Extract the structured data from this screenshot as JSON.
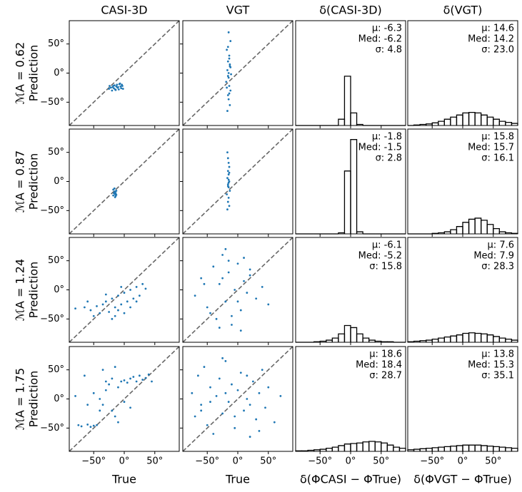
{
  "chart_data": [
    {
      "type": "scatter",
      "title": "CASI-3D",
      "ylabel": [
        "ℳA = 0.62",
        "Prediction"
      ],
      "color": "#1f77b4",
      "xlim": [
        -90,
        90
      ],
      "ylim": [
        -90,
        90
      ],
      "yticks": [
        {
          "value": -50,
          "label": "−50°"
        },
        {
          "value": 0,
          "label": "0°"
        },
        {
          "value": 50,
          "label": "50°"
        }
      ],
      "x": [
        -22,
        -18,
        -15,
        -12,
        -10,
        -8,
        -6,
        -5,
        -20,
        -25,
        -16,
        -11,
        -7,
        -3,
        -2,
        -14,
        -19,
        -9,
        -13,
        -17,
        -4,
        -24
      ],
      "y": [
        -25,
        -22,
        -28,
        -20,
        -24,
        -19,
        -23,
        -26,
        -30,
        -27,
        -21,
        -25,
        -18,
        -22,
        -27,
        -29,
        -24,
        -28,
        -23,
        -26,
        -20,
        -22
      ]
    },
    {
      "type": "scatter",
      "title": "VGT",
      "color": "#1f77b4",
      "xlim": [
        -90,
        90
      ],
      "ylim": [
        -90,
        90
      ],
      "x": [
        -15,
        -12,
        -18,
        -14,
        -16,
        -13,
        -17,
        -11,
        -15,
        -19,
        -14,
        -12,
        -16,
        -15,
        -13,
        -17,
        -14,
        -16,
        -12,
        -15,
        -18,
        -13,
        -14,
        -16
      ],
      "y": [
        70,
        55,
        40,
        30,
        20,
        12,
        5,
        -2,
        -8,
        -15,
        -22,
        -30,
        -38,
        -45,
        -55,
        -65,
        25,
        -5,
        10,
        0,
        -25,
        15,
        -35,
        45
      ]
    },
    {
      "type": "histogram",
      "title": "δ(CASI-3D)",
      "annotations": [
        "μ: -6.3",
        "Med: -6.2",
        "σ: 4.8"
      ],
      "color": "#000000",
      "xlim": [
        -90,
        90
      ],
      "ylim": [
        0,
        100
      ],
      "bins": [
        -90,
        -80,
        -70,
        -60,
        -50,
        -40,
        -30,
        -20,
        -10,
        0,
        10,
        20,
        30,
        40,
        50,
        60,
        70,
        80,
        90
      ],
      "values": [
        0,
        0,
        0,
        0,
        0,
        0,
        0,
        6,
        47,
        12,
        1,
        0,
        0,
        0,
        0,
        0,
        0,
        0
      ]
    },
    {
      "type": "histogram",
      "title": "δ(VGT)",
      "annotations": [
        "μ: 14.6",
        "Med: 14.2",
        "σ: 23.0"
      ],
      "color": "#000000",
      "xlim": [
        -90,
        90
      ],
      "ylim": [
        0,
        100
      ],
      "bins": [
        -90,
        -80,
        -70,
        -60,
        -50,
        -40,
        -30,
        -20,
        -10,
        0,
        10,
        20,
        30,
        40,
        50,
        60,
        70,
        80,
        90
      ],
      "values": [
        0,
        0.5,
        1,
        1.5,
        2.5,
        4,
        6,
        8,
        10,
        12,
        12.5,
        12,
        10,
        8,
        6,
        4,
        3,
        2
      ]
    },
    {
      "type": "scatter",
      "ylabel": [
        "ℳA = 0.87",
        "Prediction"
      ],
      "color": "#1f77b4",
      "xlim": [
        -90,
        90
      ],
      "ylim": [
        -90,
        90
      ],
      "yticks": [
        {
          "value": -50,
          "label": "−50°"
        },
        {
          "value": 0,
          "label": "0°"
        },
        {
          "value": 50,
          "label": "50°"
        }
      ],
      "x": [
        -18,
        -16,
        -15,
        -14,
        -17,
        -13,
        -15,
        -16,
        -14,
        -18,
        -15,
        -13
      ],
      "y": [
        -14,
        -18,
        -22,
        -25,
        -20,
        -16,
        -27,
        -12,
        -20,
        -24,
        -17,
        -23
      ]
    },
    {
      "type": "scatter",
      "color": "#1f77b4",
      "xlim": [
        -90,
        90
      ],
      "ylim": [
        -90,
        90
      ],
      "x": [
        -17,
        -16,
        -15,
        -14,
        -16,
        -15,
        -17,
        -14,
        -16,
        -15,
        -13,
        -18,
        -15,
        -16,
        -14,
        -17,
        -15,
        -16,
        -14,
        -15
      ],
      "y": [
        50,
        40,
        32,
        25,
        18,
        12,
        6,
        0,
        -5,
        -10,
        -16,
        -22,
        -28,
        -35,
        -42,
        -48,
        3,
        -8,
        15,
        -2
      ]
    },
    {
      "type": "histogram",
      "annotations": [
        "μ: -1.8",
        "Med: -1.5",
        "σ: 2.8"
      ],
      "color": "#000000",
      "xlim": [
        -90,
        90
      ],
      "ylim": [
        0,
        100
      ],
      "bins": [
        -90,
        -80,
        -70,
        -60,
        -50,
        -40,
        -30,
        -20,
        -10,
        0,
        10,
        20,
        30,
        40,
        50,
        60,
        70,
        80,
        90
      ],
      "values": [
        0,
        0,
        0,
        0,
        0,
        0,
        0,
        1,
        60,
        90,
        2,
        0,
        0,
        0,
        0,
        0,
        0,
        0
      ]
    },
    {
      "type": "histogram",
      "annotations": [
        "μ: 15.8",
        "Med: 15.7",
        "σ: 16.1"
      ],
      "color": "#000000",
      "xlim": [
        -90,
        90
      ],
      "ylim": [
        0,
        100
      ],
      "bins": [
        -90,
        -80,
        -70,
        -60,
        -50,
        -40,
        -30,
        -20,
        -10,
        0,
        10,
        20,
        30,
        40,
        50,
        60,
        70,
        80,
        90
      ],
      "values": [
        0,
        0,
        0,
        0,
        0.5,
        1,
        2,
        4,
        7,
        11,
        14,
        15,
        13,
        9,
        5,
        2,
        1,
        0.5
      ]
    },
    {
      "type": "scatter",
      "ylabel": [
        "ℳA = 1.24",
        "Prediction"
      ],
      "color": "#1f77b4",
      "xlim": [
        -90,
        90
      ],
      "ylim": [
        -90,
        90
      ],
      "yticks": [
        {
          "value": -50,
          "label": "−50°"
        },
        {
          "value": 0,
          "label": "0°"
        },
        {
          "value": 50,
          "label": "50°"
        }
      ],
      "x": [
        -80,
        -65,
        -55,
        -45,
        -40,
        -35,
        -30,
        -25,
        -20,
        -15,
        -10,
        -5,
        0,
        5,
        10,
        15,
        20,
        25,
        30,
        35,
        -50,
        -30,
        -20,
        -10,
        0,
        10,
        20,
        -60,
        -5,
        -15
      ],
      "y": [
        -32,
        -30,
        -35,
        -28,
        -40,
        -25,
        -20,
        -38,
        -15,
        -30,
        -10,
        -25,
        -5,
        -20,
        0,
        -15,
        5,
        -10,
        10,
        2,
        -45,
        -8,
        -50,
        -35,
        -40,
        -30,
        -20,
        -20,
        5,
        -45
      ]
    },
    {
      "type": "scatter",
      "color": "#1f77b4",
      "xlim": [
        -90,
        90
      ],
      "ylim": [
        -90,
        90
      ],
      "x": [
        -70,
        -60,
        -50,
        -40,
        -35,
        -30,
        -25,
        -20,
        -15,
        -10,
        -5,
        0,
        5,
        10,
        15,
        20,
        30,
        40,
        50,
        -45,
        -30,
        -20,
        -10,
        0,
        10,
        20,
        -55,
        -25,
        5,
        -15
      ],
      "y": [
        -10,
        20,
        -30,
        40,
        -50,
        10,
        60,
        -20,
        30,
        -60,
        0,
        45,
        -35,
        15,
        -5,
        25,
        -15,
        5,
        -25,
        -40,
        -65,
        70,
        -45,
        -20,
        55,
        35,
        10,
        20,
        -70,
        50
      ]
    },
    {
      "type": "histogram",
      "annotations": [
        "μ: -6.1",
        "Med: -5.2",
        "σ: 15.8"
      ],
      "color": "#000000",
      "xlim": [
        -90,
        90
      ],
      "ylim": [
        0,
        100
      ],
      "bins": [
        -90,
        -80,
        -70,
        -60,
        -50,
        -40,
        -30,
        -20,
        -10,
        0,
        10,
        20,
        30,
        40,
        50,
        60,
        70,
        80,
        90
      ],
      "values": [
        0,
        0,
        0,
        0.5,
        1,
        2,
        4,
        8,
        16,
        14,
        8,
        4,
        2,
        1,
        0.5,
        0.5,
        0,
        0
      ]
    },
    {
      "type": "histogram",
      "annotations": [
        "μ: 7.6",
        "Med: 7.9",
        "σ: 28.3"
      ],
      "color": "#000000",
      "xlim": [
        -90,
        90
      ],
      "ylim": [
        0,
        100
      ],
      "bins": [
        -90,
        -80,
        -70,
        -60,
        -50,
        -40,
        -30,
        -20,
        -10,
        0,
        10,
        20,
        30,
        40,
        50,
        60,
        70,
        80,
        90
      ],
      "values": [
        0.5,
        1,
        1.5,
        2,
        3,
        4,
        5,
        6,
        7,
        8.5,
        9,
        8.5,
        8,
        7,
        5.5,
        4,
        3,
        2
      ]
    },
    {
      "type": "scatter",
      "ylabel": [
        "ℳA = 1.75",
        "Prediction"
      ],
      "xlabel": "True",
      "color": "#1f77b4",
      "xlim": [
        -90,
        90
      ],
      "ylim": [
        -90,
        90
      ],
      "xticks": [
        {
          "value": -50,
          "label": "−50°"
        },
        {
          "value": 0,
          "label": "0°"
        },
        {
          "value": 50,
          "label": "50°"
        }
      ],
      "yticks": [
        {
          "value": -50,
          "label": "−50°"
        },
        {
          "value": 0,
          "label": "0°"
        },
        {
          "value": 50,
          "label": "50°"
        }
      ],
      "x": [
        -75,
        -70,
        -60,
        -55,
        -50,
        -45,
        -40,
        -35,
        -30,
        -25,
        -20,
        -15,
        -10,
        -5,
        0,
        5,
        10,
        15,
        20,
        25,
        30,
        35,
        40,
        45,
        -80,
        -60,
        -40,
        -20,
        0,
        -50,
        -30,
        -10,
        10,
        -65,
        -35,
        -15
      ],
      "y": [
        -45,
        -47,
        -44,
        -48,
        -46,
        -45,
        -20,
        -10,
        30,
        25,
        35,
        -30,
        20,
        30,
        32,
        28,
        35,
        38,
        30,
        40,
        33,
        36,
        42,
        30,
        5,
        -10,
        0,
        -20,
        -5,
        10,
        15,
        -40,
        -15,
        40,
        50,
        55
      ]
    },
    {
      "type": "scatter",
      "xlabel": "True",
      "color": "#1f77b4",
      "xlim": [
        -90,
        90
      ],
      "ylim": [
        -90,
        90
      ],
      "xticks": [
        {
          "value": -50,
          "label": "−50°"
        },
        {
          "value": 0,
          "label": "0°"
        },
        {
          "value": 50,
          "label": "50°"
        }
      ],
      "x": [
        -75,
        -70,
        -65,
        -60,
        -55,
        -50,
        -45,
        -40,
        -35,
        -30,
        -25,
        -20,
        -15,
        -10,
        -5,
        0,
        5,
        10,
        15,
        20,
        25,
        30,
        35,
        40,
        45,
        50,
        60,
        70,
        -45,
        -25,
        -5,
        15,
        35,
        -60,
        -20,
        20
      ],
      "y": [
        10,
        -30,
        40,
        -10,
        55,
        -45,
        20,
        -60,
        5,
        35,
        -25,
        65,
        -5,
        25,
        -50,
        15,
        45,
        -20,
        0,
        -65,
        30,
        -35,
        10,
        50,
        -15,
        20,
        -40,
        5,
        -5,
        70,
        -30,
        40,
        -55,
        -20,
        10,
        -10
      ]
    },
    {
      "type": "histogram",
      "xlabel": "δ(ΦCASI − ΦTrue)",
      "annotations": [
        "μ: 18.6",
        "Med: 18.4",
        "σ: 28.7"
      ],
      "color": "#000000",
      "xlim": [
        -90,
        90
      ],
      "ylim": [
        0,
        100
      ],
      "xticks": [
        {
          "value": -50,
          "label": "−50°"
        },
        {
          "value": 0,
          "label": "0°"
        },
        {
          "value": 50,
          "label": "50°"
        }
      ],
      "bins": [
        -90,
        -80,
        -70,
        -60,
        -50,
        -40,
        -30,
        -20,
        -10,
        0,
        10,
        20,
        30,
        40,
        50,
        60,
        70,
        80,
        90
      ],
      "values": [
        0.5,
        0.5,
        1,
        1.5,
        2,
        3,
        4,
        5.5,
        7,
        7.5,
        8,
        9,
        9.5,
        9,
        8,
        6,
        4,
        3
      ]
    },
    {
      "type": "histogram",
      "xlabel": "δ(ΦVGT − ΦTrue)",
      "annotations": [
        "μ: 13.8",
        "Med: 15.3",
        "σ: 35.1"
      ],
      "color": "#000000",
      "xlim": [
        -90,
        90
      ],
      "ylim": [
        0,
        100
      ],
      "xticks": [
        {
          "value": -50,
          "label": "−50°"
        },
        {
          "value": 0,
          "label": "0°"
        },
        {
          "value": 50,
          "label": "50°"
        }
      ],
      "bins": [
        -90,
        -80,
        -70,
        -60,
        -50,
        -40,
        -30,
        -20,
        -10,
        0,
        10,
        20,
        30,
        40,
        50,
        60,
        70,
        80,
        90
      ],
      "values": [
        1.5,
        2,
        2.5,
        3,
        3.5,
        4,
        4.5,
        5,
        5.5,
        6,
        6,
        6,
        5.5,
        5,
        4.5,
        4,
        3.5,
        3
      ]
    }
  ]
}
